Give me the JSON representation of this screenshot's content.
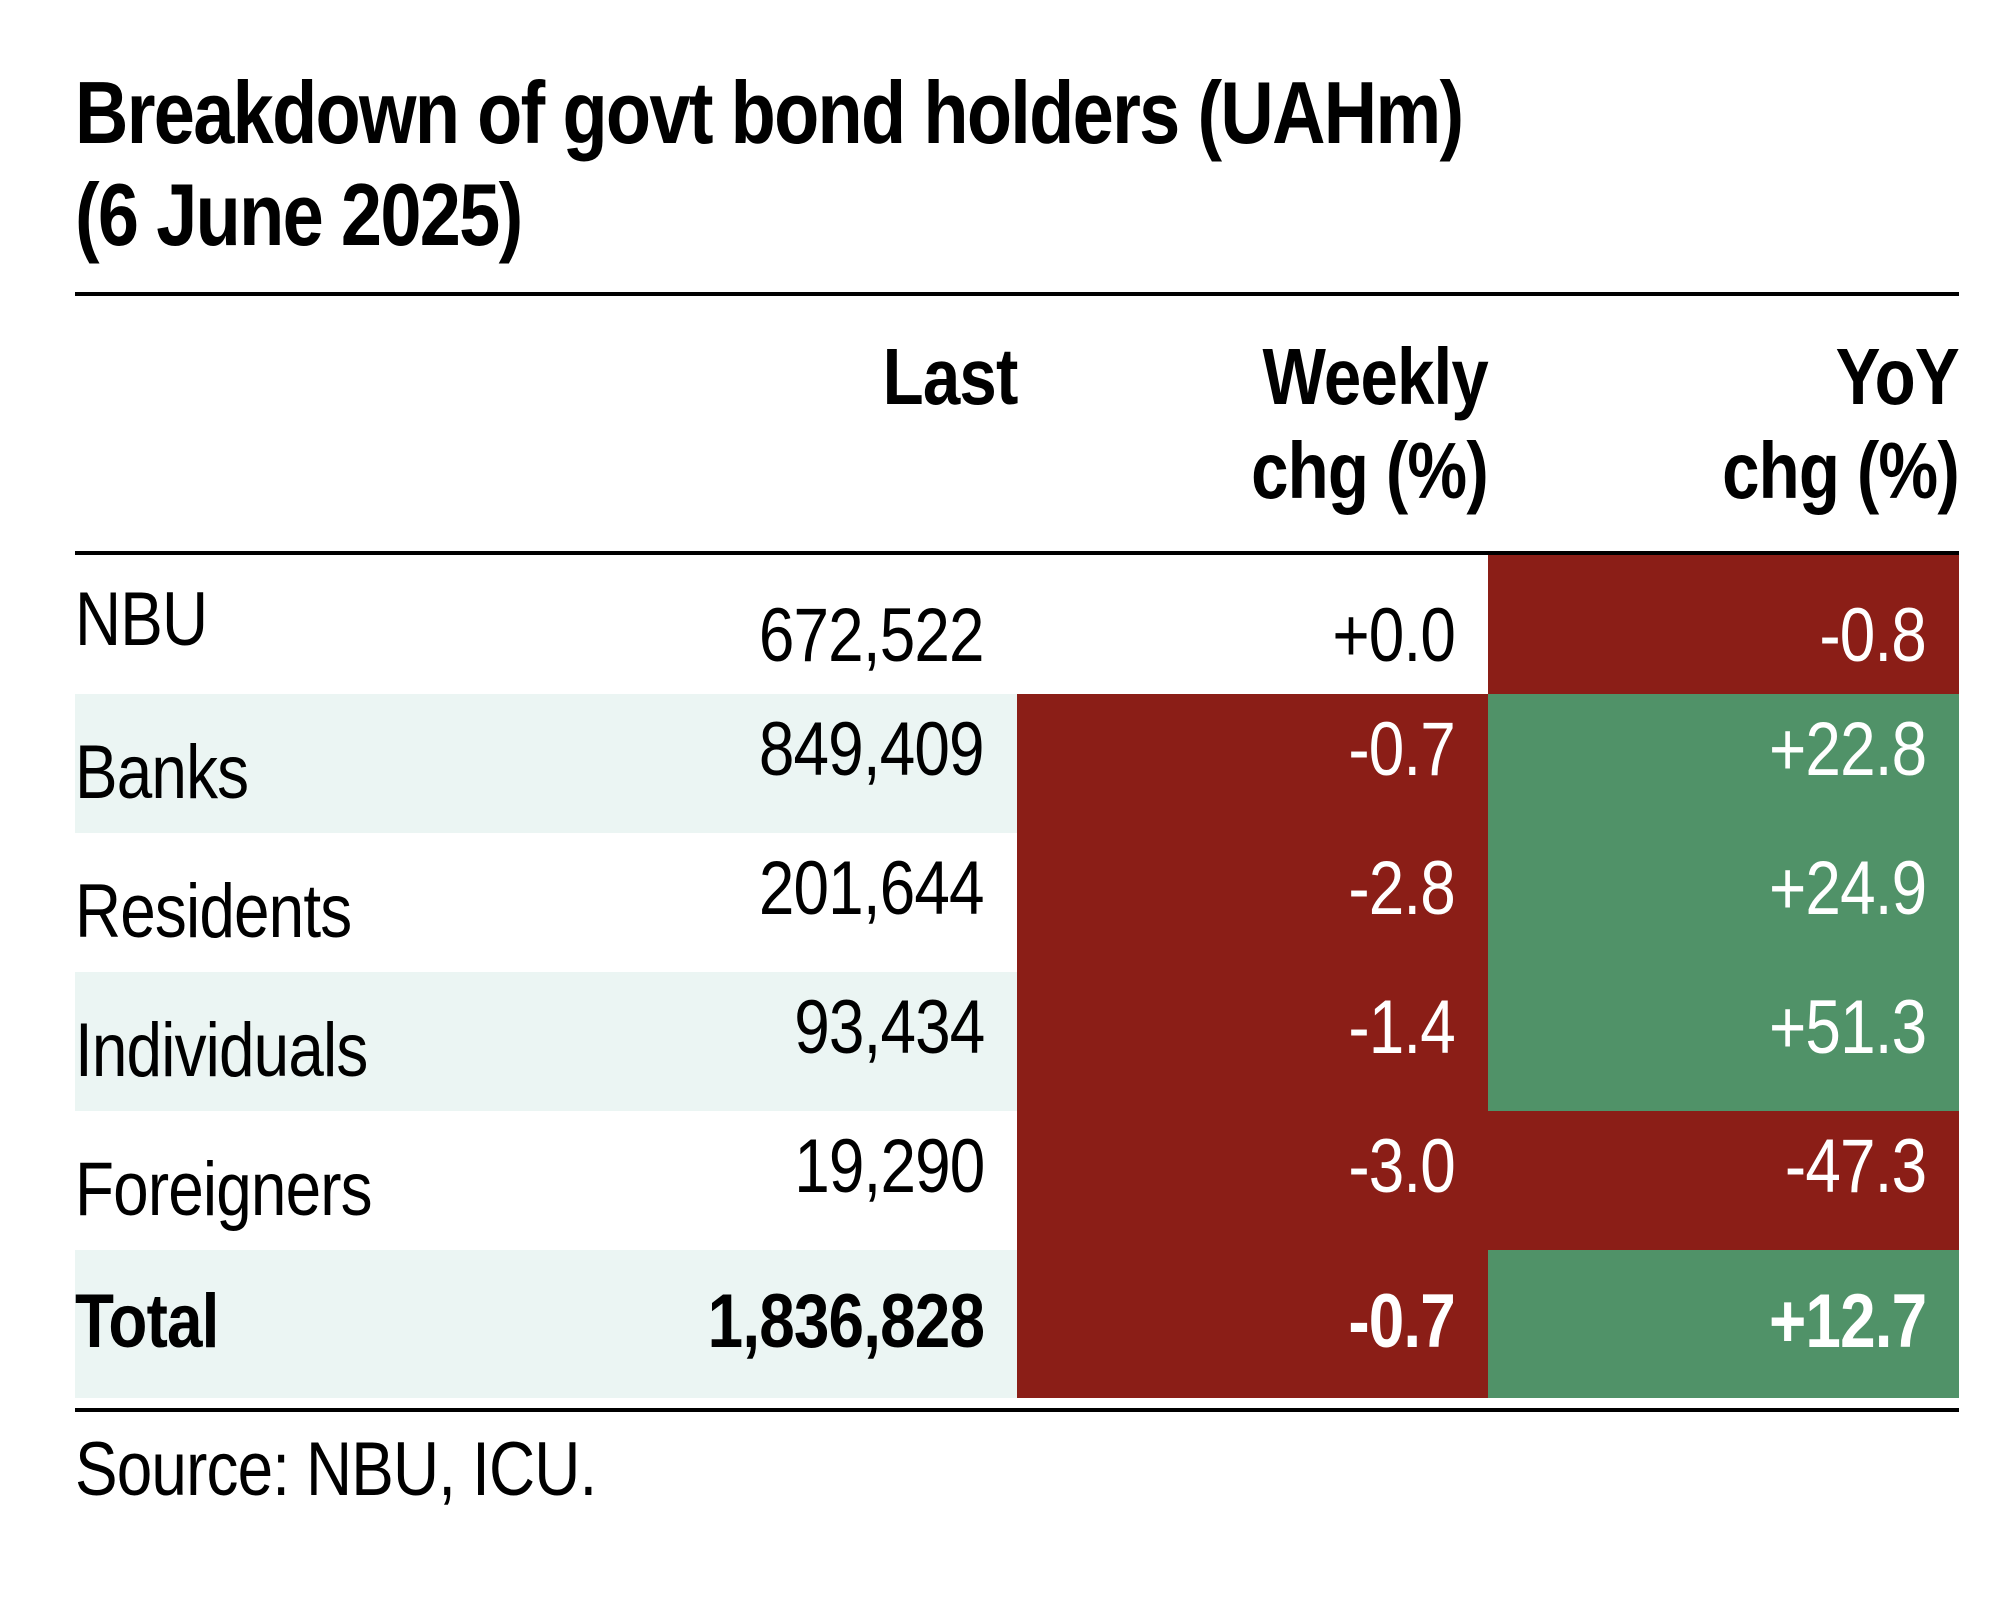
{
  "title_line1": "Breakdown of govt bond holders (UAHm)",
  "title_line2": "(6 June 2025)",
  "columns": {
    "last": "Last",
    "weekly_line1": "Weekly",
    "weekly_line2": "chg (%)",
    "yoy_line1": "YoY",
    "yoy_line2": "chg (%)"
  },
  "source": "Source: NBU, ICU.",
  "colors": {
    "negative": "#8b1e17",
    "positive": "#509268",
    "row_shade": "#ebf5f3"
  },
  "chart_data": {
    "type": "table",
    "title": "Breakdown of govt bond holders (UAHm) (6 June 2025)",
    "columns": [
      "Last",
      "Weekly chg (%)",
      "YoY chg (%)"
    ],
    "rows": [
      {
        "label": "NBU",
        "last": "672,522",
        "weekly": "+0.0",
        "yoy": "-0.8"
      },
      {
        "label": "Banks",
        "last": "849,409",
        "weekly": "-0.7",
        "yoy": "+22.8"
      },
      {
        "label": "Residents",
        "last": "201,644",
        "weekly": "-2.8",
        "yoy": "+24.9"
      },
      {
        "label": "Individuals",
        "last": "93,434",
        "weekly": "-1.4",
        "yoy": "+51.3"
      },
      {
        "label": "Foreigners",
        "last": "19,290",
        "weekly": "-3.0",
        "yoy": "-47.3"
      },
      {
        "label": "Total",
        "last": "1,836,828",
        "weekly": "-0.7",
        "yoy": "+12.7"
      }
    ]
  }
}
